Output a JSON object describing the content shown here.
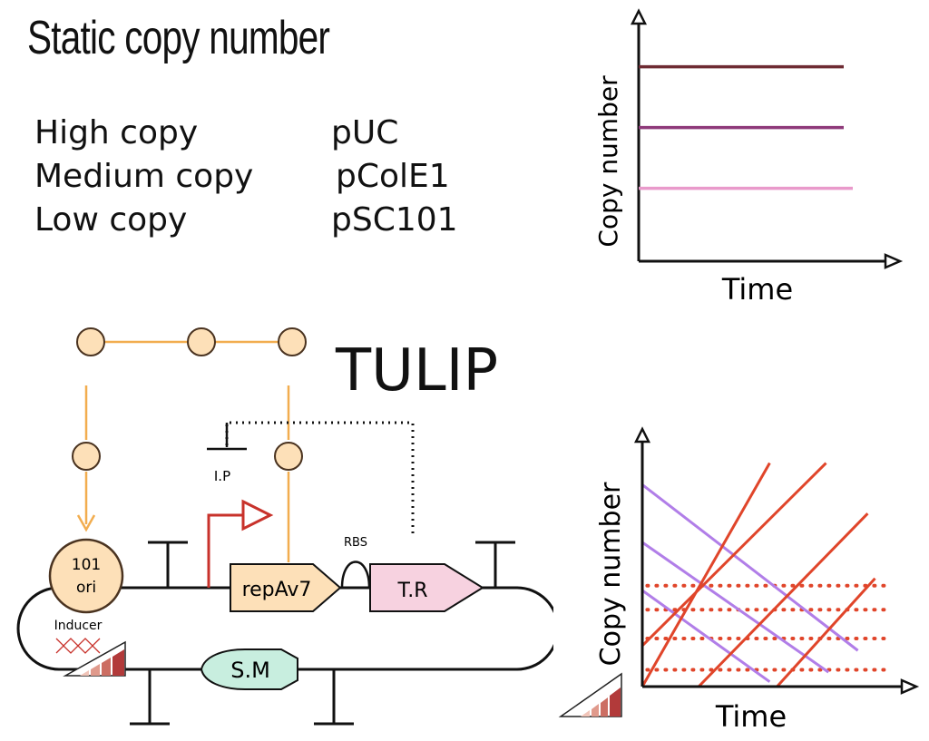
{
  "title": "Static copy number",
  "plasmid_table": [
    {
      "level": "High copy",
      "plasmid": "pUC"
    },
    {
      "level": "Medium copy",
      "plasmid": "pColE1"
    },
    {
      "level": "Low copy",
      "plasmid": "pSC101"
    }
  ],
  "tulip_label": "TULIP",
  "circuit": {
    "ori_line1": "101",
    "ori_line2": "ori",
    "inducer": "Inducer",
    "ip": "I.P",
    "rbs": "RBS",
    "repav7": "repAv7",
    "tr": "T.R",
    "sm": "S.M"
  },
  "colors": {
    "node_fill": "#fde0b8",
    "node_stroke": "#4a3320",
    "signal_line": "#f2ad4f",
    "promoter": "#c8322b",
    "repav7_fill": "#fde0b8",
    "tr_fill": "#f7d2e0",
    "sm_fill": "#c8eedf",
    "static_high": "#6e2b33",
    "static_medium": "#8e3a7a",
    "static_low": "#e99acb",
    "rise": "#e0452a",
    "fall": "#b17ee8",
    "dotted": "#e0452a"
  },
  "chart_data": [
    {
      "type": "line",
      "title": "",
      "xlabel": "Time",
      "ylabel": "Copy number",
      "x": [
        0,
        1
      ],
      "ylim": [
        0,
        1
      ],
      "series": [
        {
          "values": [
            0.8,
            0.8
          ],
          "color": "#6e2b33"
        },
        {
          "values": [
            0.55,
            0.55
          ],
          "color": "#8e3a7a"
        },
        {
          "values": [
            0.3,
            0.3
          ],
          "color": "#e99acb"
        }
      ]
    },
    {
      "type": "line",
      "title": "",
      "xlabel": "Time",
      "ylabel": "Copy number",
      "xlim": [
        0,
        1
      ],
      "ylim": [
        0,
        1
      ],
      "rising": [
        [
          [
            0.0,
            0.0
          ],
          [
            0.52,
            0.93
          ]
        ],
        [
          [
            0.0,
            0.17
          ],
          [
            0.75,
            0.93
          ]
        ],
        [
          [
            0.23,
            0.0
          ],
          [
            0.92,
            0.72
          ]
        ],
        [
          [
            0.55,
            0.0
          ],
          [
            0.95,
            0.45
          ]
        ]
      ],
      "falling": [
        [
          [
            0.0,
            0.84
          ],
          [
            0.88,
            0.15
          ]
        ],
        [
          [
            0.0,
            0.6
          ],
          [
            0.76,
            0.06
          ]
        ],
        [
          [
            0.0,
            0.4
          ],
          [
            0.52,
            0.02
          ]
        ]
      ],
      "dotted_levels": [
        0.42,
        0.32,
        0.2,
        0.07
      ]
    }
  ]
}
